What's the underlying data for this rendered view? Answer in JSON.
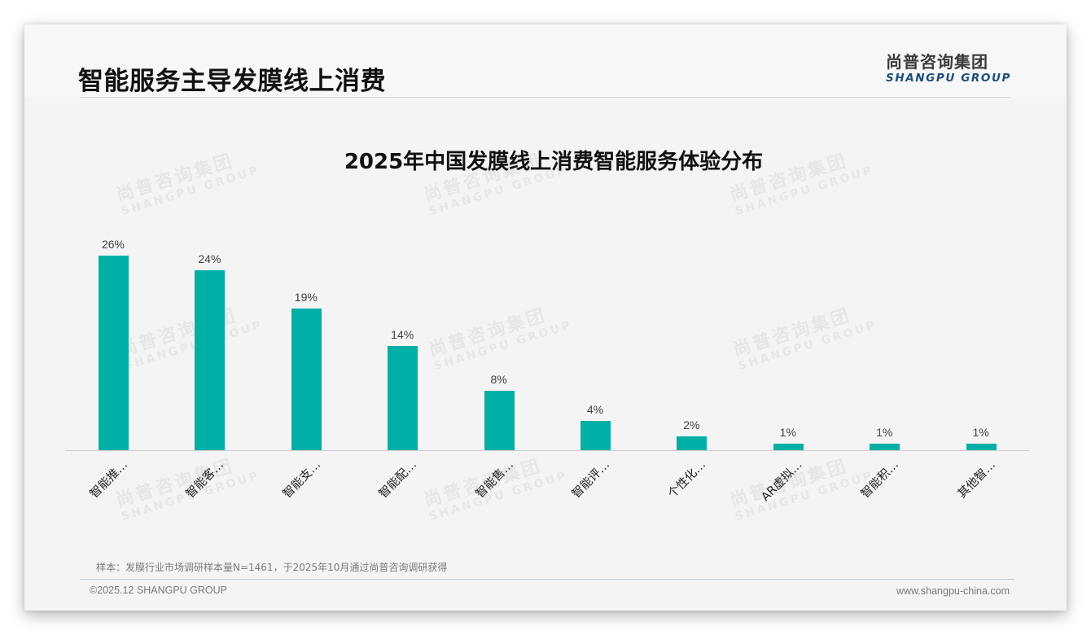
{
  "header": {
    "title": "智能服务主导发膜线上消费",
    "logo_cn": "尚普咨询集团",
    "logo_en": "SHANGPU GROUP"
  },
  "watermark": {
    "cn": "尚普咨询集团",
    "en": "SHANGPU GROUP"
  },
  "colors": {
    "bar": "#00afa5",
    "logo_en": "#1f4e79",
    "slide_bg": "#f4f4f4"
  },
  "chart_data": {
    "type": "bar",
    "title": "2025年中国发膜线上消费智能服务体验分布",
    "categories": [
      "智能推…",
      "智能客…",
      "智能支…",
      "智能配…",
      "智能售…",
      "智能评…",
      "个性化…",
      "AR虚拟…",
      "智能积…",
      "其他智…"
    ],
    "values": [
      26,
      24,
      19,
      14,
      8,
      4,
      2,
      1,
      1,
      1
    ],
    "value_labels": [
      "26%",
      "24%",
      "19%",
      "14%",
      "8%",
      "4%",
      "2%",
      "1%",
      "1%",
      "1%"
    ],
    "unit": "%",
    "xlabel": "",
    "ylabel": "",
    "ylim": [
      0,
      30
    ],
    "grid": false,
    "legend": null,
    "data_labels": true
  },
  "footer": {
    "note": "样本：发膜行业市场调研样本量N=1461，于2025年10月通过尚普咨询调研获得",
    "copyright": "©2025.12 SHANGPU GROUP",
    "website": "www.shangpu-china.com"
  }
}
